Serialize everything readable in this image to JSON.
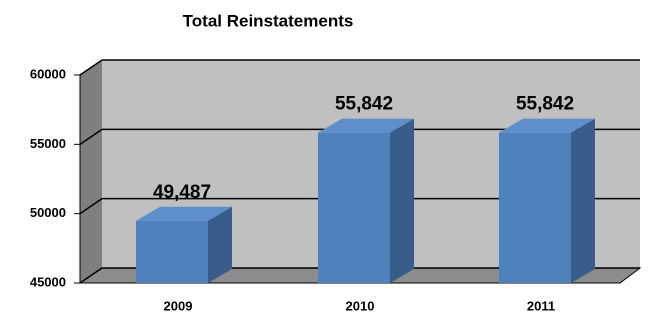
{
  "chart_data": {
    "type": "bar",
    "title": "Total Reinstatements",
    "categories": [
      "2009",
      "2010",
      "2011"
    ],
    "values": [
      49487,
      55842,
      55842
    ],
    "value_labels": [
      "49,487",
      "55,842",
      "55,842"
    ],
    "color": "#4f81bd",
    "ylim": [
      45000,
      60000
    ],
    "yticks": [
      45000,
      50000,
      55000,
      60000
    ],
    "grid": true
  }
}
